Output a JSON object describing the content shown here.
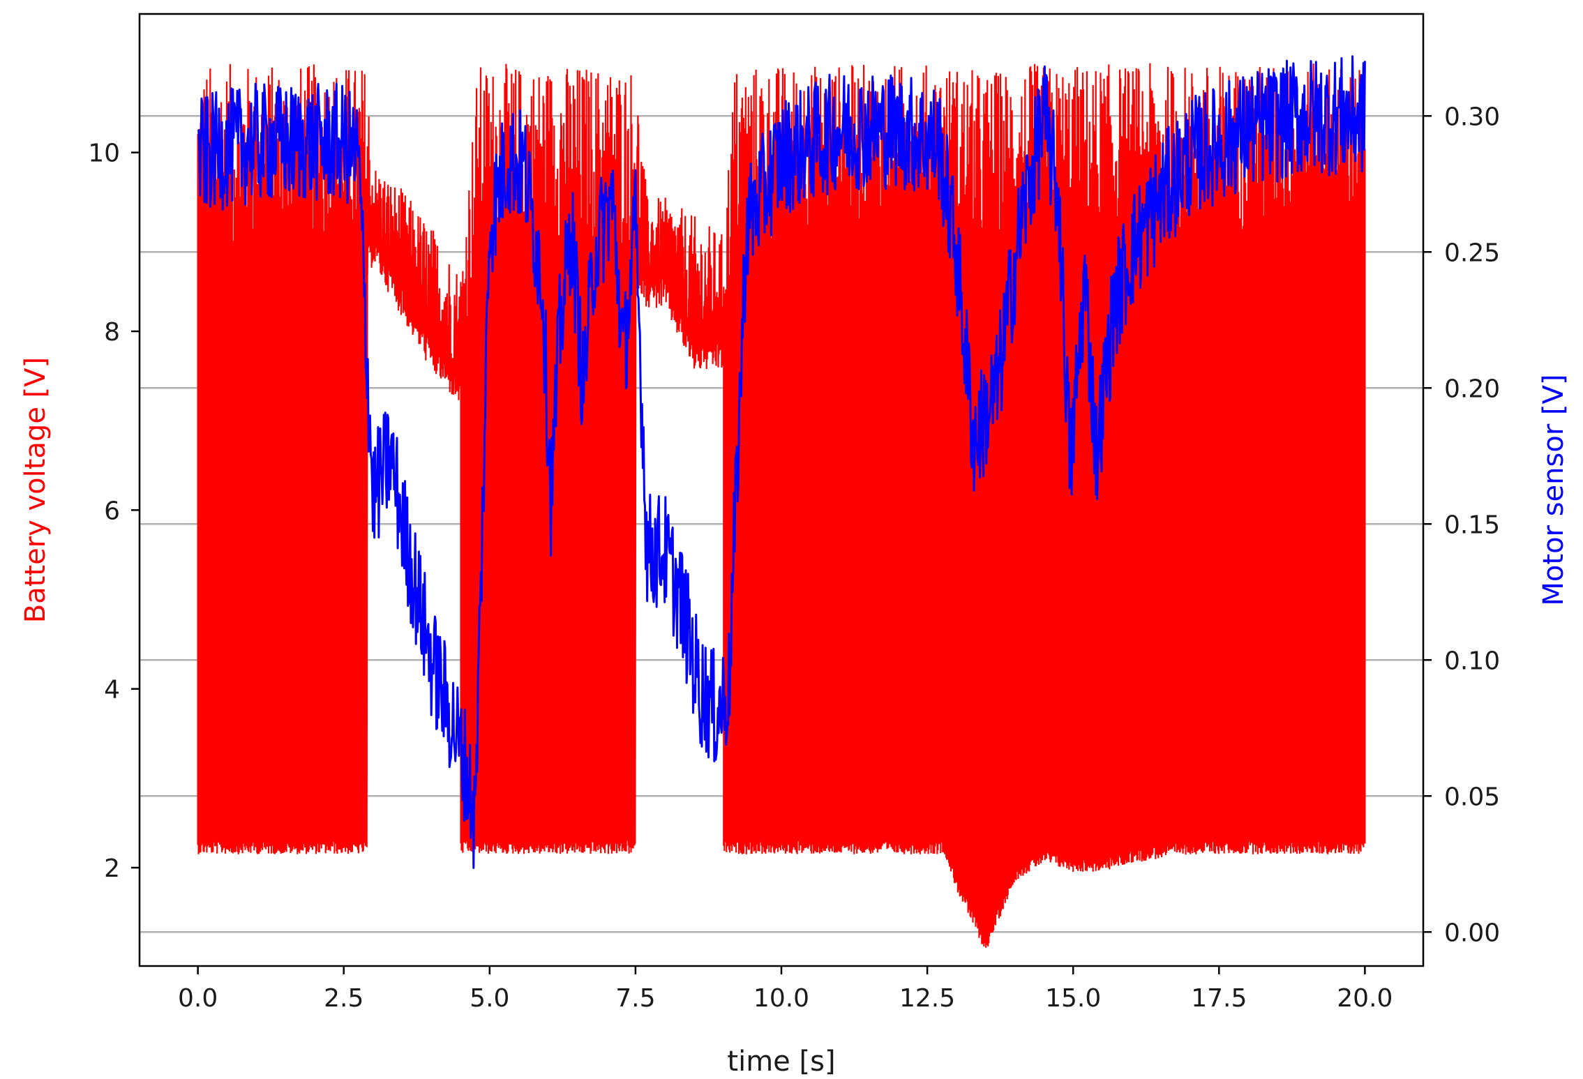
{
  "chart_data": {
    "type": "line",
    "title": "",
    "xlabel": "time [s]",
    "ylabel_left": "Battery voltage [V]",
    "ylabel_right": "Motor sensor [V]",
    "xlim": [
      -1.0,
      21.0
    ],
    "ylim_left": [
      0.9,
      11.55
    ],
    "ylim_right": [
      -0.0125,
      0.3375
    ],
    "x_ticks": [
      "0.0",
      "2.5",
      "5.0",
      "7.5",
      "10.0",
      "12.5",
      "15.0",
      "17.5",
      "20.0"
    ],
    "y_left_ticks": [
      "2",
      "4",
      "6",
      "8",
      "10"
    ],
    "y_right_ticks": [
      "0.00",
      "0.05",
      "0.10",
      "0.15",
      "0.20",
      "0.25",
      "0.30"
    ],
    "grid": "horizontal, right axis",
    "colors": {
      "battery": "#ff0000",
      "motor": "#0000ff",
      "grid": "#b0b0b0",
      "text": "#1a1a1a"
    },
    "series": [
      {
        "axis": "left",
        "color": "#ff0000",
        "note": "PWM-switched battery voltage; envelope of rapid oscillation",
        "x": [
          0.0,
          0.5,
          1.0,
          1.5,
          2.0,
          2.5,
          2.9,
          3.0,
          3.5,
          4.0,
          4.5,
          4.8,
          5.0,
          5.5,
          6.0,
          6.5,
          7.0,
          7.5,
          7.7,
          8.0,
          8.5,
          9.0,
          9.2,
          9.5,
          10.0,
          11.0,
          12.0,
          12.8,
          13.0,
          13.5,
          14.0,
          14.5,
          15.0,
          15.5,
          16.0,
          17.0,
          18.0,
          19.0,
          20.0
        ],
        "upper": [
          11.0,
          11.0,
          11.0,
          11.0,
          11.0,
          11.0,
          11.0,
          9.9,
          9.6,
          9.2,
          8.7,
          11.0,
          11.0,
          11.0,
          11.0,
          11.0,
          11.0,
          11.0,
          9.5,
          9.5,
          9.3,
          9.1,
          11.0,
          11.0,
          11.0,
          11.0,
          11.0,
          11.0,
          11.0,
          10.9,
          11.0,
          11.0,
          11.0,
          11.0,
          11.0,
          11.0,
          11.0,
          11.0,
          11.0
        ],
        "upper_min": [
          8.7,
          8.8,
          8.9,
          8.9,
          8.9,
          8.9,
          8.9,
          9.1,
          8.5,
          7.9,
          7.5,
          8.8,
          8.9,
          8.9,
          8.9,
          8.9,
          8.9,
          8.9,
          8.6,
          8.6,
          7.9,
          7.9,
          8.8,
          8.9,
          9.0,
          9.1,
          9.2,
          9.2,
          9.0,
          8.9,
          8.9,
          8.9,
          8.9,
          8.9,
          8.9,
          9.0,
          9.1,
          9.2,
          9.3
        ],
        "lower": [
          2.3,
          2.3,
          2.3,
          2.3,
          2.3,
          2.3,
          2.3,
          null,
          null,
          null,
          null,
          2.3,
          2.3,
          2.3,
          2.3,
          2.3,
          2.3,
          2.3,
          null,
          null,
          null,
          null,
          2.3,
          2.3,
          2.3,
          2.3,
          2.3,
          2.3,
          1.9,
          1.2,
          2.0,
          2.2,
          2.1,
          2.1,
          2.2,
          2.3,
          2.3,
          2.3,
          2.3
        ]
      },
      {
        "axis": "right",
        "color": "#0000ff",
        "note": "motor sensor voltage with band of noise",
        "x": [
          0.0,
          0.5,
          1.0,
          1.5,
          2.0,
          2.5,
          2.75,
          3.0,
          3.3,
          3.6,
          4.0,
          4.4,
          4.6,
          4.75,
          5.0,
          5.3,
          5.6,
          5.9,
          6.05,
          6.2,
          6.4,
          6.6,
          6.8,
          7.1,
          7.3,
          7.5,
          7.7,
          8.0,
          8.3,
          8.6,
          8.9,
          9.1,
          9.4,
          10.0,
          11.0,
          12.0,
          12.7,
          13.0,
          13.3,
          13.7,
          14.1,
          14.5,
          14.75,
          14.95,
          15.2,
          15.4,
          15.7,
          16.0,
          16.5,
          17.0,
          18.0,
          19.0,
          20.0
        ],
        "y": [
          0.285,
          0.288,
          0.29,
          0.29,
          0.29,
          0.29,
          0.285,
          0.16,
          0.175,
          0.14,
          0.1,
          0.075,
          0.06,
          0.04,
          0.26,
          0.285,
          0.28,
          0.24,
          0.16,
          0.22,
          0.26,
          0.2,
          0.25,
          0.27,
          0.21,
          0.26,
          0.14,
          0.14,
          0.12,
          0.09,
          0.08,
          0.09,
          0.26,
          0.285,
          0.295,
          0.295,
          0.29,
          0.25,
          0.18,
          0.2,
          0.26,
          0.3,
          0.27,
          0.17,
          0.24,
          0.175,
          0.23,
          0.25,
          0.27,
          0.285,
          0.295,
          0.3,
          0.3
        ],
        "band": 0.022
      }
    ]
  }
}
